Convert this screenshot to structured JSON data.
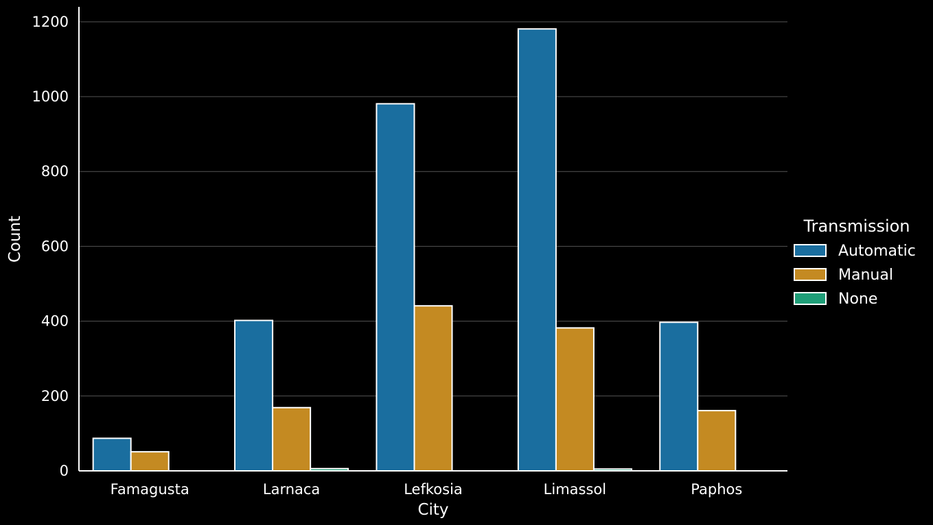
{
  "chart_data": {
    "type": "bar",
    "title": "",
    "xlabel": "City",
    "ylabel": "Count",
    "categories": [
      "Famagusta",
      "Larnaca",
      "Lefkosia",
      "Limassol",
      "Paphos"
    ],
    "series": [
      {
        "name": "Automatic",
        "values": [
          87,
          402,
          981,
          1181,
          397
        ],
        "color": "#1a6e9f"
      },
      {
        "name": "Manual",
        "values": [
          51,
          169,
          441,
          382,
          161
        ],
        "color": "#c48a22"
      },
      {
        "name": "None",
        "values": [
          0,
          6,
          0,
          5,
          0
        ],
        "color": "#1f9e78"
      }
    ],
    "ylim": [
      0,
      1240
    ],
    "yticks": [
      0,
      200,
      400,
      600,
      800,
      1000,
      1200
    ],
    "grid": true,
    "legend": {
      "title": "Transmission",
      "placement": "right"
    },
    "colors": {
      "background": "#000000",
      "foreground": "#ffffff",
      "grid": "#555555",
      "bar_edge": "#ffffff"
    }
  }
}
